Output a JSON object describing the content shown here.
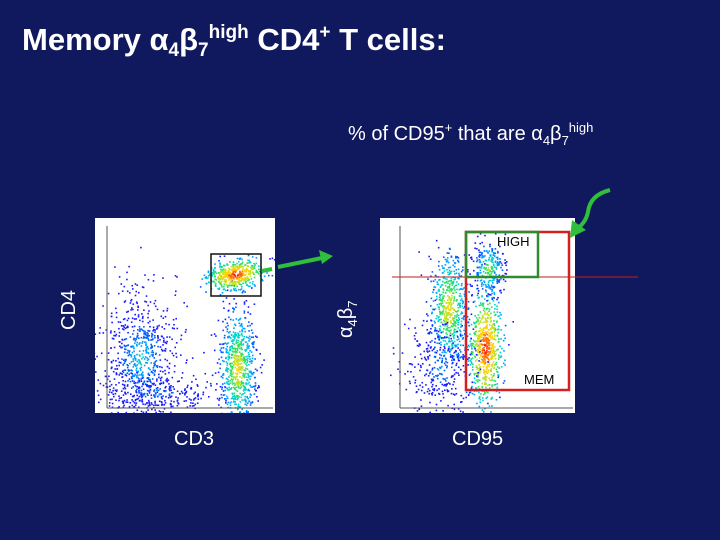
{
  "title": {
    "main": "Memory α",
    "sub1": "4",
    "beta": "β",
    "sub2": "7",
    "sup": "high",
    "rest": " CD4",
    "plus": "+",
    "tail": " T cells:"
  },
  "subtitle": {
    "pre": "% of CD95",
    "plus": "+",
    "mid": " that are α",
    "sub1": "4",
    "beta": "β",
    "sub2": "7",
    "sup": "high"
  },
  "plot1": {
    "ylabel": "CD4",
    "xlabel": "CD3"
  },
  "plot2": {
    "ylabel_alpha": "α",
    "ylabel_sub1": "4",
    "ylabel_beta": "β",
    "ylabel_sub2": "7",
    "xlabel": "CD95",
    "gate_high": "HIGH",
    "gate_mem": "MEM"
  },
  "colors": {
    "background": "#11195e",
    "arrow": "#2fbf3a",
    "gate_high": "#2e8b2e",
    "gate_mem": "#d42020",
    "threshold_line": "#c41e1e"
  }
}
